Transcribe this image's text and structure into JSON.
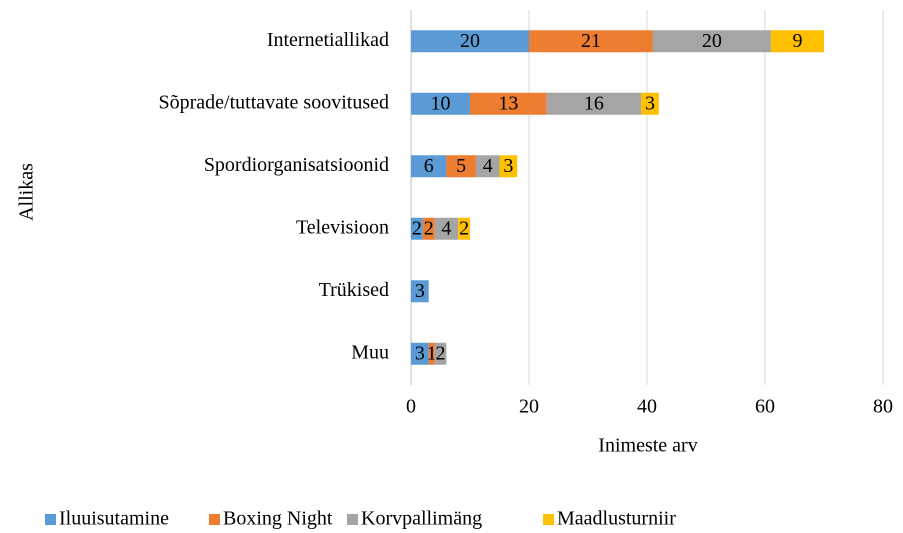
{
  "chart_data": {
    "type": "bar",
    "orientation": "horizontal",
    "stacked": true,
    "x_label": "Inimeste arv",
    "y_label": "Allikas",
    "categories": [
      "Internetiallikad",
      "Sõprade/tuttavate soovitused",
      "Spordiorganisatsioonid",
      "Televisioon",
      "Trükised",
      "Muu"
    ],
    "series": [
      {
        "name": "Iluuisutamine",
        "color": "#5b9bd5",
        "values": [
          20,
          10,
          6,
          2,
          3,
          3
        ]
      },
      {
        "name": "Boxing Night",
        "color": "#ed7d31",
        "values": [
          21,
          13,
          5,
          2,
          null,
          1
        ]
      },
      {
        "name": "Korvpallimäng",
        "color": "#a5a5a5",
        "values": [
          20,
          16,
          4,
          4,
          null,
          2
        ]
      },
      {
        "name": "Maadlusturniir",
        "color": "#ffc000",
        "values": [
          9,
          3,
          3,
          2,
          null,
          null
        ]
      }
    ],
    "xlim": [
      0,
      80
    ],
    "xticks": [
      0,
      20,
      40,
      60,
      80
    ],
    "grid": true,
    "legend": "bottom"
  }
}
